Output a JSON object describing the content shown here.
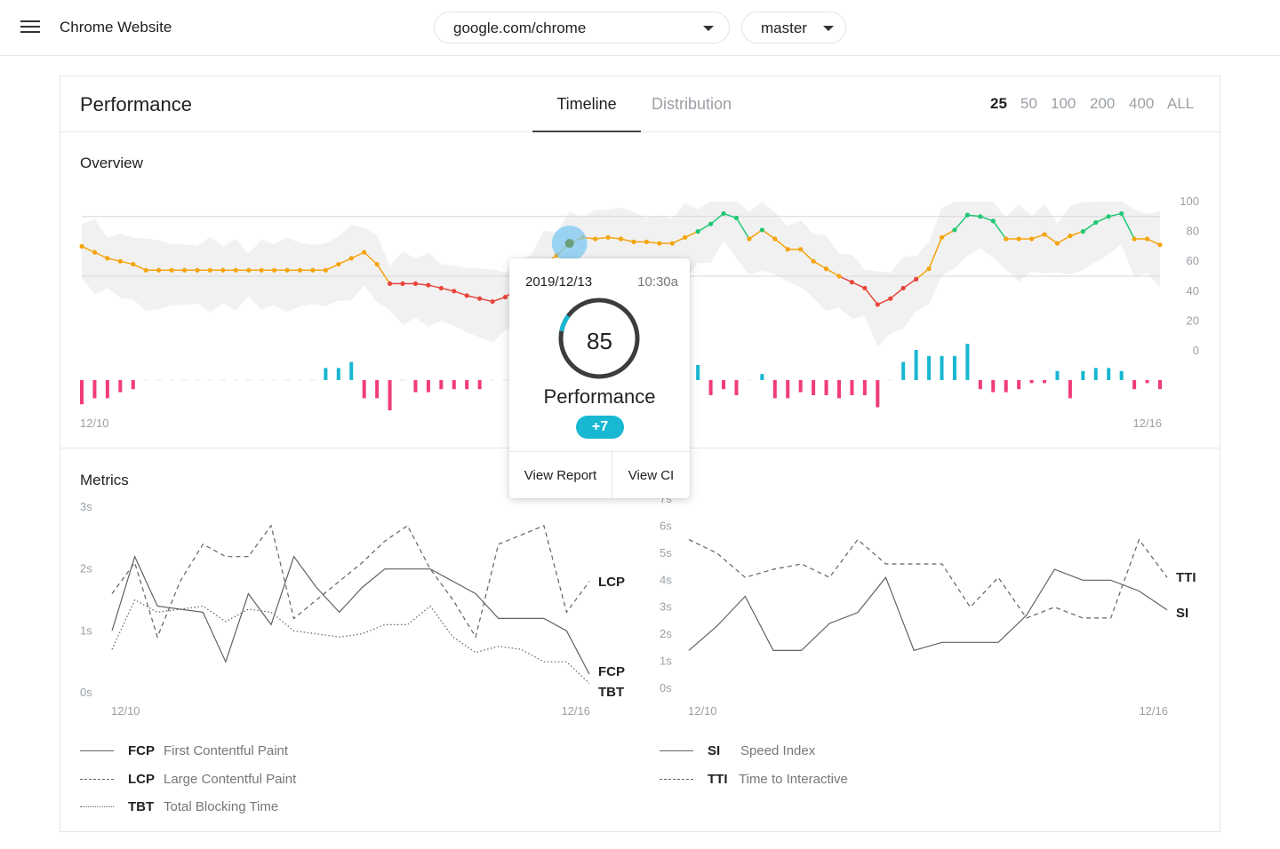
{
  "header": {
    "app_title": "Chrome Website",
    "url_value": "google.com/chrome",
    "branch_value": "master"
  },
  "card": {
    "title": "Performance",
    "tabs": [
      {
        "label": "Timeline",
        "active": true
      },
      {
        "label": "Distribution",
        "active": false
      }
    ],
    "ranges": [
      {
        "label": "25",
        "active": true
      },
      {
        "label": "50",
        "active": false
      },
      {
        "label": "100",
        "active": false
      },
      {
        "label": "200",
        "active": false
      },
      {
        "label": "400",
        "active": false
      },
      {
        "label": "ALL",
        "active": false
      }
    ]
  },
  "overview": {
    "title": "Overview",
    "x_start": "12/10",
    "x_end": "12/16",
    "y_ticks": [
      "100",
      "80",
      "60",
      "40",
      "20",
      "0"
    ]
  },
  "metrics": {
    "title": "Metrics",
    "left": {
      "y_ticks": [
        "3s",
        "2s",
        "1s",
        "0s"
      ],
      "x_start": "12/10",
      "x_end": "12/16",
      "end_labels": [
        "LCP",
        "FCP",
        "TBT"
      ]
    },
    "right": {
      "y_ticks": [
        "7s",
        "6s",
        "5s",
        "4s",
        "3s",
        "2s",
        "1s",
        "0s"
      ],
      "x_start": "12/10",
      "x_end": "12/16",
      "end_labels": [
        "TTI",
        "SI"
      ]
    },
    "legend_left": [
      {
        "abbr": "FCP",
        "full": "First Contentful Paint",
        "style": "solid"
      },
      {
        "abbr": "LCP",
        "full": "Large Contentful Paint",
        "style": "dashed"
      },
      {
        "abbr": "TBT",
        "full": "Total Blocking Time",
        "style": "dotted"
      }
    ],
    "legend_right": [
      {
        "abbr": "SI",
        "full": "Speed Index",
        "style": "solid"
      },
      {
        "abbr": "TTI",
        "full": "Time to Interactive",
        "style": "dashed"
      }
    ]
  },
  "tooltip": {
    "date": "2019/12/13",
    "time": "10:30a",
    "score": "85",
    "label": "Performance",
    "delta": "+7",
    "view_report": "View Report",
    "view_ci": "View CI"
  },
  "colors": {
    "good": "#1ec773",
    "average": "#f5a40c",
    "poor": "#e8453c",
    "improve": "#18b7d2",
    "regress": "#f03c78",
    "band": "#f1f1f1"
  },
  "chart_data": [
    {
      "type": "line",
      "name": "overview",
      "ylim": [
        0,
        100
      ],
      "y_ticks": [
        0,
        20,
        40,
        60,
        80,
        100
      ],
      "x_labels": [
        "12/10",
        "12/16"
      ],
      "scores": [
        70,
        66,
        62,
        60,
        58,
        54,
        54,
        54,
        54,
        54,
        54,
        54,
        54,
        54,
        54,
        54,
        54,
        54,
        54,
        54,
        58,
        62,
        66,
        58,
        45,
        45,
        45,
        44,
        42,
        40,
        37,
        35,
        33,
        36,
        42,
        50,
        58,
        64,
        72,
        76,
        75,
        76,
        75,
        73,
        73,
        72,
        72,
        76,
        80,
        85,
        92,
        89,
        75,
        81,
        75,
        68,
        68,
        60,
        55,
        50,
        46,
        42,
        31,
        35,
        42,
        48,
        55,
        76,
        81,
        91,
        90,
        87,
        75,
        75,
        75,
        78,
        72,
        77,
        80,
        86,
        90,
        92,
        75,
        75,
        71
      ],
      "deltas": [
        -8,
        -6,
        -6,
        -4,
        -3,
        0,
        0,
        0,
        0,
        0,
        0,
        0,
        0,
        0,
        0,
        0,
        0,
        0,
        0,
        4,
        4,
        6,
        -6,
        -6,
        -10,
        0,
        -4,
        -4,
        -3,
        -3,
        -3,
        -3,
        0,
        0,
        4,
        6,
        6,
        8,
        5,
        5,
        6,
        6,
        -1,
        0,
        0,
        0,
        4,
        4,
        5,
        -5,
        -3,
        -5,
        0,
        2,
        -6,
        -6,
        -4,
        -5,
        -5,
        -6,
        -5,
        -5,
        -9,
        0,
        6,
        10,
        8,
        8,
        8,
        12,
        -3,
        -4,
        -4,
        -3,
        -1,
        -1,
        3,
        -6,
        3,
        4,
        4,
        3,
        -3,
        -1,
        -3
      ]
    },
    {
      "type": "line",
      "name": "metrics-left",
      "ylim": [
        0,
        3
      ],
      "y_unit": "s",
      "x_labels": [
        "12/10",
        "12/16"
      ],
      "series": [
        {
          "name": "FCP",
          "values": [
            1.0,
            2.2,
            1.4,
            1.35,
            1.3,
            0.5,
            1.6,
            1.1,
            2.2,
            1.7,
            1.3,
            1.7,
            2.0,
            2.0,
            2.0,
            1.8,
            1.6,
            1.2,
            1.2,
            1.2,
            1.0,
            0.3
          ]
        },
        {
          "name": "LCP",
          "values": [
            1.6,
            2.1,
            0.9,
            1.8,
            2.4,
            2.2,
            2.2,
            2.7,
            1.2,
            1.5,
            1.8,
            2.1,
            2.45,
            2.7,
            2.0,
            1.5,
            0.9,
            2.4,
            2.55,
            2.7,
            1.3,
            1.8
          ]
        },
        {
          "name": "TBT",
          "values": [
            0.7,
            1.5,
            1.3,
            1.35,
            1.4,
            1.15,
            1.35,
            1.3,
            1.0,
            0.95,
            0.9,
            0.95,
            1.1,
            1.1,
            1.4,
            0.9,
            0.65,
            0.75,
            0.7,
            0.5,
            0.5,
            0.15
          ]
        }
      ]
    },
    {
      "type": "line",
      "name": "metrics-right",
      "ylim": [
        0,
        7
      ],
      "y_unit": "s",
      "x_labels": [
        "12/10",
        "12/16"
      ],
      "series": [
        {
          "name": "SI",
          "values": [
            1.4,
            2.3,
            3.4,
            1.4,
            1.4,
            2.4,
            2.8,
            4.1,
            1.4,
            1.7,
            1.7,
            1.7,
            2.7,
            4.4,
            4.0,
            4.0,
            3.6,
            2.9
          ]
        },
        {
          "name": "TTI",
          "values": [
            5.5,
            5.0,
            4.1,
            4.4,
            4.6,
            4.1,
            5.5,
            4.6,
            4.6,
            4.6,
            3.0,
            4.1,
            2.6,
            3.0,
            2.6,
            2.6,
            5.5,
            4.1
          ]
        }
      ]
    }
  ]
}
